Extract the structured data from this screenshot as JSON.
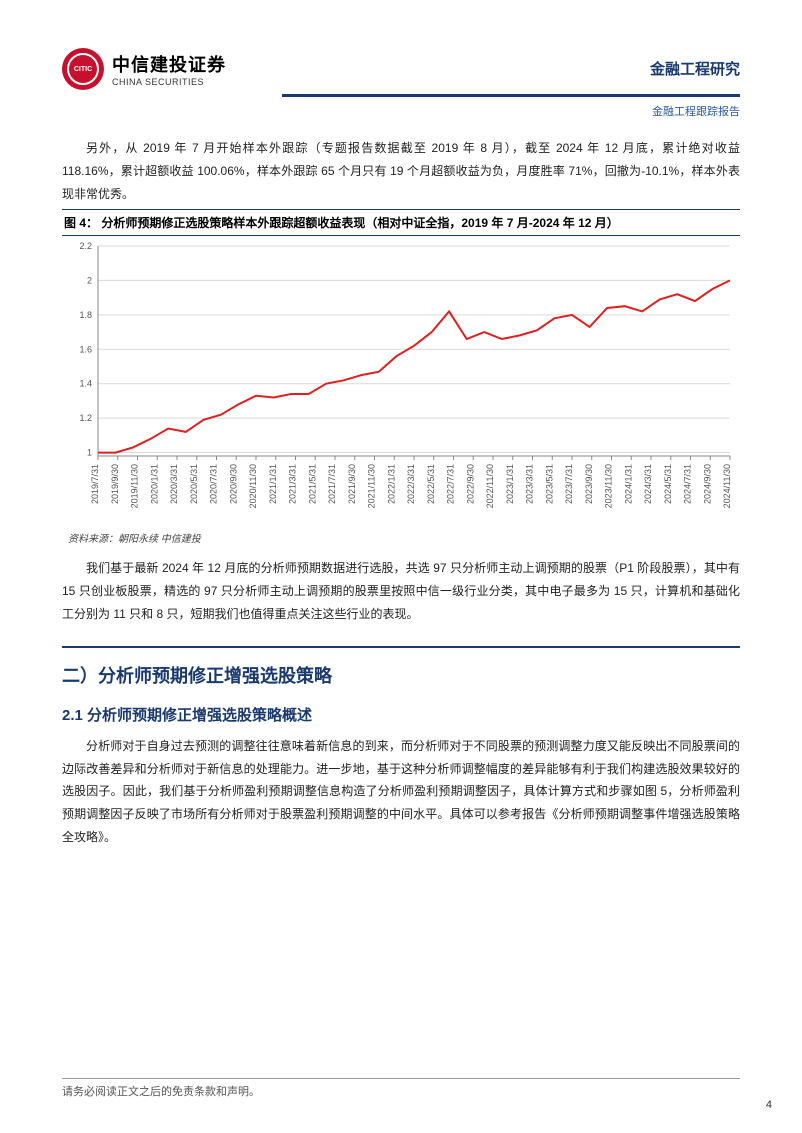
{
  "header": {
    "logo_cn": "中信建投证券",
    "logo_en": "CHINA SECURITIES",
    "logo_glyph": "CITIC",
    "right_title": "金融工程研究",
    "subtitle": "金融工程跟踪报告"
  },
  "para1": "另外，从 2019 年 7 月开始样本外跟踪（专题报告数据截至 2019 年 8 月），截至 2024 年 12 月底，累计绝对收益 118.16%，累计超额收益 100.06%，样本外跟踪 65 个月只有 19 个月超额收益为负，月度胜率 71%，回撤为-10.1%，样本外表现非常优秀。",
  "figure4": {
    "label": "图 4：",
    "title": "分析师预期修正选股策略样本外跟踪超额收益表现（相对中证全指，2019 年 7 月-2024 年 12 月）",
    "source": "资料来源：朝阳永续 中信建投"
  },
  "chart": {
    "type": "line",
    "line_color": "#e02020",
    "line_width": 2,
    "background_color": "#ffffff",
    "grid_color": "#d9d9d9",
    "ylim": [
      0.98,
      2.2
    ],
    "ytick_step": 0.2,
    "axis_color": "#888888",
    "label_fontsize": 9,
    "label_color": "#555555",
    "x_labels": [
      "2019/7/31",
      "2019/9/30",
      "2019/11/30",
      "2020/1/31",
      "2020/3/31",
      "2020/5/31",
      "2020/7/31",
      "2020/9/30",
      "2020/11/30",
      "2021/1/31",
      "2021/3/31",
      "2021/5/31",
      "2021/7/31",
      "2021/9/30",
      "2021/11/30",
      "2022/1/31",
      "2022/3/31",
      "2022/5/31",
      "2022/7/31",
      "2022/9/30",
      "2022/11/30",
      "2023/1/31",
      "2023/3/31",
      "2023/5/31",
      "2023/7/31",
      "2023/9/30",
      "2023/11/30",
      "2024/1/31",
      "2024/3/31",
      "2024/5/31",
      "2024/7/31",
      "2024/9/30",
      "2024/11/30"
    ],
    "values": [
      1.0,
      1.0,
      1.03,
      1.08,
      1.14,
      1.12,
      1.19,
      1.22,
      1.28,
      1.33,
      1.32,
      1.34,
      1.34,
      1.4,
      1.42,
      1.45,
      1.47,
      1.56,
      1.62,
      1.7,
      1.82,
      1.66,
      1.7,
      1.66,
      1.68,
      1.71,
      1.78,
      1.8,
      1.73,
      1.84,
      1.85,
      1.82,
      1.89,
      1.92,
      1.88,
      1.95,
      2.0
    ]
  },
  "para2": "我们基于最新 2024 年 12 月底的分析师预期数据进行选股，共选 97 只分析师主动上调预期的股票（P1 阶段股票），其中有 15 只创业板股票，精选的 97 只分析师主动上调预期的股票里按照中信一级行业分类，其中电子最多为 15 只，计算机和基础化工分别为 11 只和 8 只，短期我们也值得重点关注这些行业的表现。",
  "section2": {
    "h1": "二）分析师预期修正增强选股策略",
    "h2": "2.1 分析师预期修正增强选股策略概述",
    "body": "分析师对于自身过去预测的调整往往意味着新信息的到来，而分析师对于不同股票的预测调整力度又能反映出不同股票间的边际改善差异和分析师对于新信息的处理能力。进一步地，基于这种分析师调整幅度的差异能够有利于我们构建选股效果较好的选股因子。因此，我们基于分析师盈利预期调整信息构造了分析师盈利预期调整因子，具体计算方式和步骤如图 5，分析师盈利预期调整因子反映了市场所有分析师对于股票盈利预期调整的中间水平。具体可以参考报告《分析师预期调整事件增强选股策略全攻略》。"
  },
  "footer": {
    "disclaimer": "请务必阅读正文之后的免责条款和声明。",
    "page": "4"
  }
}
